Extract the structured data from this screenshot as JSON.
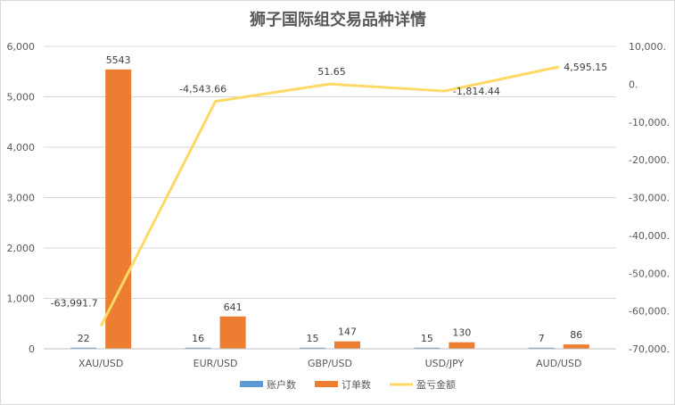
{
  "chart_data": {
    "type": "bar",
    "title": "狮子国际组交易品种详情",
    "categories": [
      "XAU/USD",
      "EUR/USD",
      "GBP/USD",
      "USD/JPY",
      "AUD/USD"
    ],
    "series": [
      {
        "name": "账户数",
        "type": "bar",
        "axis": "left",
        "color": "#5b9bd5",
        "values": [
          22,
          16,
          15,
          15,
          7
        ],
        "labels": [
          "22",
          "16",
          "15",
          "15",
          "7"
        ]
      },
      {
        "name": "订单数",
        "type": "bar",
        "axis": "left",
        "color": "#ed7d31",
        "values": [
          5543,
          641,
          147,
          130,
          86
        ],
        "labels": [
          "5543",
          "641",
          "147",
          "130",
          "86"
        ]
      },
      {
        "name": "盈亏金额",
        "type": "line",
        "axis": "right",
        "color": "#ffd966",
        "values": [
          -63991.7,
          -4543.66,
          51.65,
          -1814.44,
          4595.15
        ],
        "labels": [
          "-63,991.7",
          "-4,543.66",
          "51.65",
          "-1,814.44",
          "4,595.15"
        ]
      }
    ],
    "y_left": {
      "ylim": [
        0,
        6000
      ],
      "ticks": [
        0,
        1000,
        2000,
        3000,
        4000,
        5000,
        6000
      ],
      "tick_labels": [
        "0",
        "1,000",
        "2,000",
        "3,000",
        "4,000",
        "5,000",
        "6,000"
      ]
    },
    "y_right": {
      "ylim": [
        -70000,
        10000
      ],
      "ticks": [
        -70000,
        -60000,
        -50000,
        -40000,
        -30000,
        -20000,
        -10000,
        0,
        10000
      ],
      "tick_labels": [
        "-70,000.",
        "-60,000.",
        "-50,000.",
        "-40,000.",
        "-30,000.",
        "-20,000.",
        "-10,000.",
        "0.",
        "10,000."
      ]
    },
    "grid": true,
    "legend_position": "bottom"
  }
}
